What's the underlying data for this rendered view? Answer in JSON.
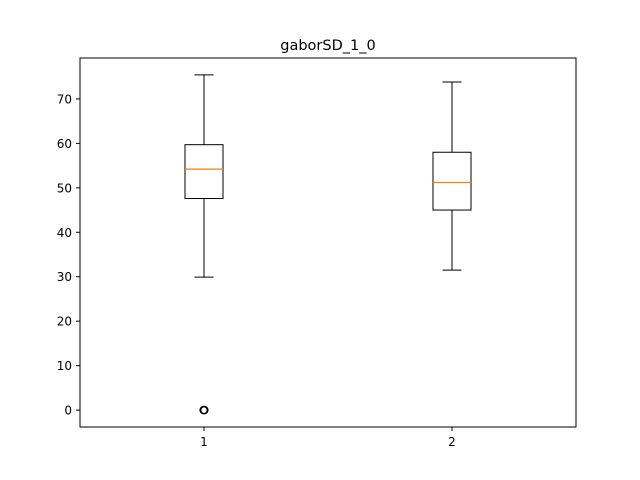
{
  "chart_data": {
    "type": "box",
    "title": "gaborSD_1_0",
    "xlabel": "",
    "ylabel": "",
    "categories": [
      "1",
      "2"
    ],
    "ylim": [
      -3.8,
      79.2
    ],
    "yticks": [
      0,
      10,
      20,
      30,
      40,
      50,
      60,
      70
    ],
    "grid": false,
    "boxes": [
      {
        "category": "1",
        "whisker_low": 29.9,
        "q1": 47.6,
        "median": 54.2,
        "q3": 59.7,
        "whisker_high": 75.4,
        "outliers": [
          0,
          0,
          0
        ]
      },
      {
        "category": "2",
        "whisker_low": 31.5,
        "q1": 45.0,
        "median": 51.2,
        "q3": 58.0,
        "whisker_high": 73.8,
        "outliers": []
      }
    ],
    "colors": {
      "box": "#000000",
      "median": "#ff7f0e",
      "outlier": "#000000",
      "axes": "#000000"
    }
  }
}
